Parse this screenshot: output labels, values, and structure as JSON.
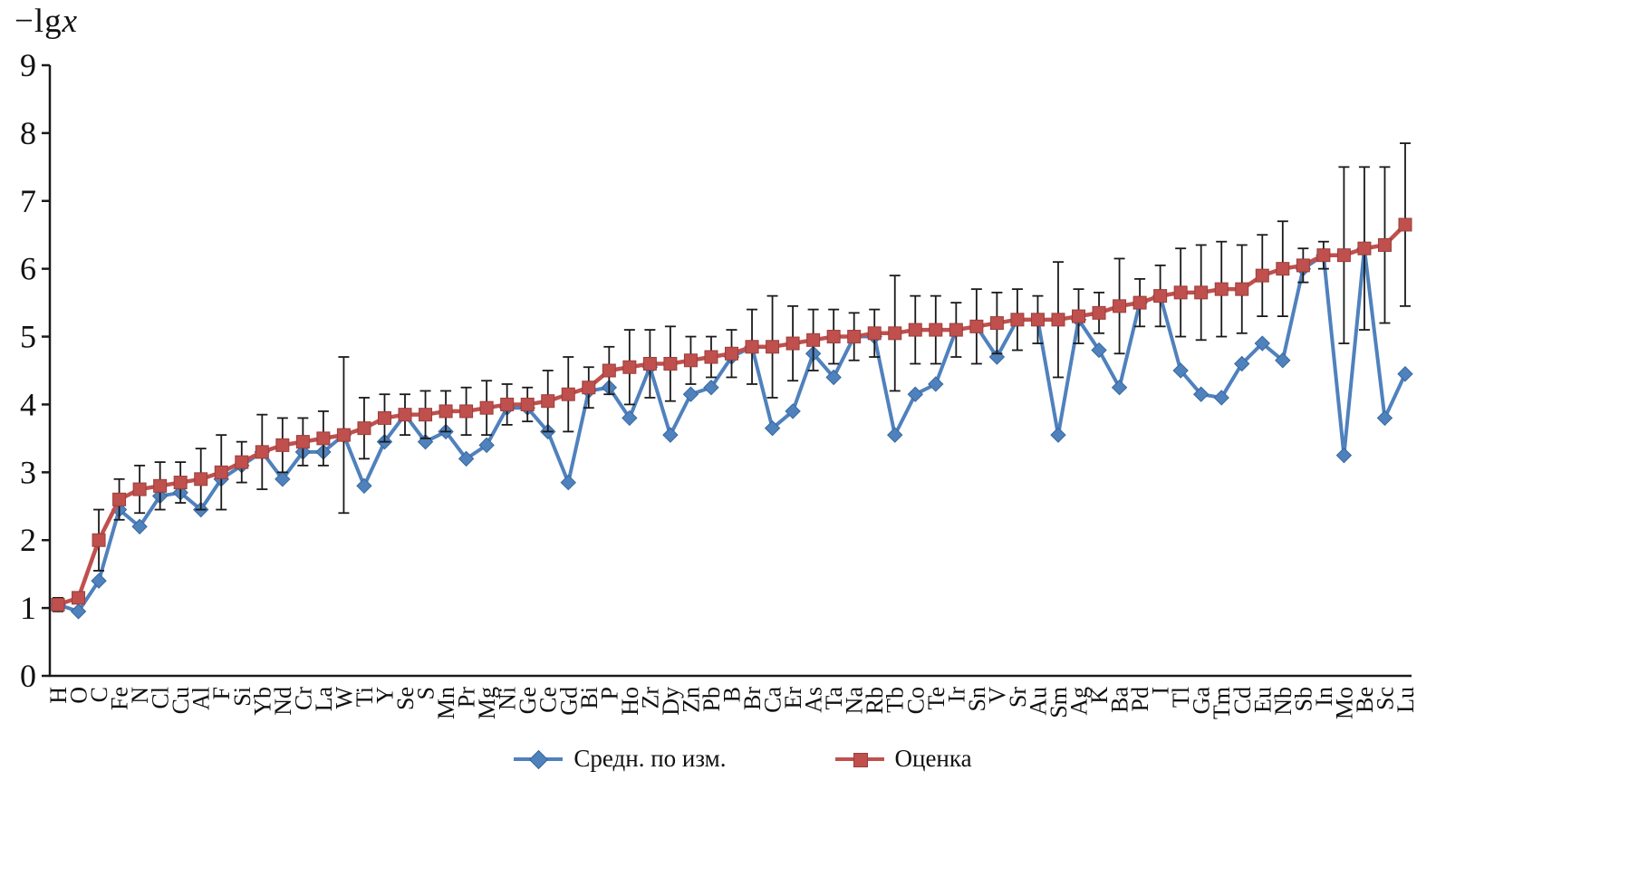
{
  "figure": {
    "ylabel_prefix": "−lg",
    "ylabel_var": "x",
    "background": "#ffffff",
    "axis_color": "#1a1a1a",
    "error_bar_color": "#1a1a1a"
  },
  "chart_data": {
    "type": "line",
    "title": "",
    "xlabel": "",
    "ylabel": "−lgx",
    "ylim": [
      0,
      9
    ],
    "yticks": [
      0,
      1,
      2,
      3,
      4,
      5,
      6,
      7,
      8,
      9
    ],
    "grid": false,
    "legend_position": "bottom",
    "categories": [
      "H",
      "O",
      "C",
      "Fe",
      "N",
      "Cl",
      "Cu",
      "Al",
      "F",
      "Si",
      "Yb",
      "Nd",
      "Cr",
      "La",
      "W",
      "Ti",
      "Y",
      "Se",
      "S",
      "Mn",
      "Pr",
      "Mg",
      "Ni",
      "Ge",
      "Ce",
      "Gd",
      "Bi",
      "P",
      "Ho",
      "Zr",
      "Dy",
      "Zn",
      "Pb",
      "B",
      "Br",
      "Ca",
      "Er",
      "As",
      "Ta",
      "Na",
      "Rb",
      "Tb",
      "Co",
      "Te",
      "Ir",
      "Sn",
      "V",
      "Sr",
      "Au",
      "Sm",
      "Ag",
      "K",
      "Ba",
      "Pd",
      "I",
      "Tl",
      "Ga",
      "Tm",
      "Cd",
      "Eu",
      "Nb",
      "Sb",
      "In",
      "Mo",
      "Be",
      "Sc",
      "Lu"
    ],
    "series": [
      {
        "key": "measured",
        "name": "Средн. по изм.",
        "marker": "diamond",
        "color": "#4f81bd",
        "border": "#38699e",
        "values": [
          1.05,
          0.95,
          1.4,
          2.45,
          2.2,
          2.65,
          2.7,
          2.45,
          2.9,
          3.1,
          3.3,
          2.9,
          3.3,
          3.3,
          3.55,
          2.8,
          3.45,
          3.85,
          3.45,
          3.6,
          3.2,
          3.4,
          3.95,
          3.95,
          3.6,
          2.85,
          4.2,
          4.25,
          3.8,
          4.55,
          3.55,
          4.15,
          4.25,
          4.7,
          4.85,
          3.65,
          3.9,
          4.75,
          4.4,
          5.0,
          5.0,
          3.55,
          4.15,
          4.3,
          5.1,
          5.15,
          4.7,
          5.25,
          5.25,
          3.55,
          5.25,
          4.8,
          4.25,
          5.5,
          5.6,
          4.5,
          4.15,
          4.1,
          4.6,
          4.9,
          4.65,
          6.0,
          6.2,
          3.25,
          6.3,
          3.8,
          4.45
        ]
      },
      {
        "key": "estimate",
        "name": "Оценка",
        "marker": "square",
        "color": "#c0504d",
        "border": "#993e3c",
        "values": [
          1.05,
          1.15,
          2.0,
          2.6,
          2.75,
          2.8,
          2.85,
          2.9,
          3.0,
          3.15,
          3.3,
          3.4,
          3.45,
          3.5,
          3.55,
          3.65,
          3.8,
          3.85,
          3.85,
          3.9,
          3.9,
          3.95,
          4.0,
          4.0,
          4.05,
          4.15,
          4.25,
          4.5,
          4.55,
          4.6,
          4.6,
          4.65,
          4.7,
          4.75,
          4.85,
          4.85,
          4.9,
          4.95,
          5.0,
          5.0,
          5.05,
          5.05,
          5.1,
          5.1,
          5.1,
          5.15,
          5.2,
          5.25,
          5.25,
          5.25,
          5.3,
          5.35,
          5.45,
          5.5,
          5.6,
          5.65,
          5.65,
          5.7,
          5.7,
          5.9,
          6.0,
          6.05,
          6.2,
          6.2,
          6.3,
          6.35,
          6.65
        ],
        "errors": [
          0.1,
          0.05,
          0.45,
          0.3,
          0.35,
          0.35,
          0.3,
          0.45,
          0.55,
          0.3,
          0.55,
          0.4,
          0.35,
          0.4,
          1.15,
          0.45,
          0.35,
          0.3,
          0.35,
          0.3,
          0.35,
          0.4,
          0.3,
          0.25,
          0.45,
          0.55,
          0.3,
          0.35,
          0.55,
          0.5,
          0.55,
          0.35,
          0.3,
          0.35,
          0.55,
          0.75,
          0.55,
          0.45,
          0.4,
          0.35,
          0.35,
          0.85,
          0.5,
          0.5,
          0.4,
          0.55,
          0.45,
          0.45,
          0.35,
          0.85,
          0.4,
          0.3,
          0.7,
          0.35,
          0.45,
          0.65,
          0.7,
          0.7,
          0.65,
          0.6,
          0.7,
          0.25,
          0.2,
          1.3,
          1.2,
          1.15,
          1.2
        ],
        "error_color": "#1a1a1a"
      }
    ]
  }
}
